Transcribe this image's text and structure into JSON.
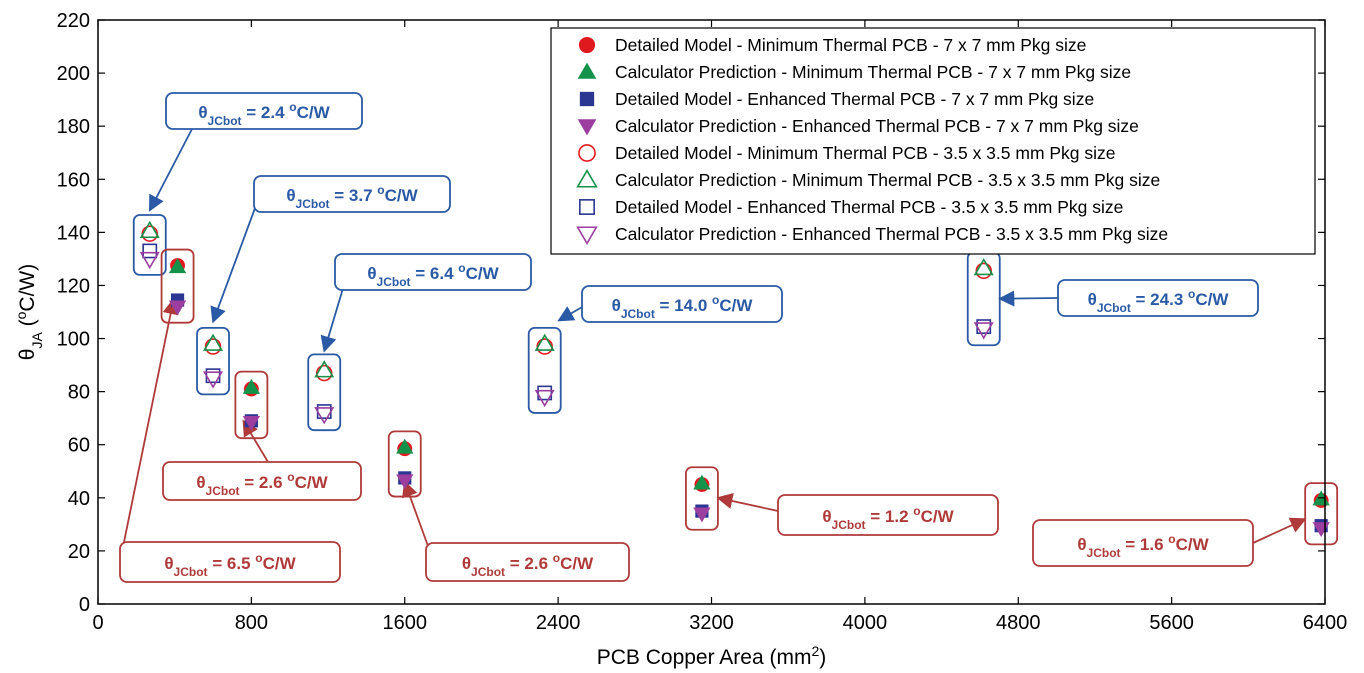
{
  "chart_data": {
    "type": "scatter",
    "xlabel": "PCB Copper Area (mm",
    "xlabel_sup": "2",
    "xlabel_end": ")",
    "ylabel_symbol": "θ",
    "ylabel_sub": "JA",
    "ylabel_open": " (",
    "ylabel_sup": "o",
    "ylabel_unit": "C/W)",
    "xlim": [
      0,
      6400
    ],
    "ylim": [
      0,
      220
    ],
    "x_ticks": [
      "0",
      "800",
      "1600",
      "2400",
      "3200",
      "4000",
      "4800",
      "5600",
      "6400"
    ],
    "y_ticks": [
      "0",
      "20",
      "40",
      "60",
      "80",
      "100",
      "120",
      "140",
      "160",
      "180",
      "200",
      "220"
    ],
    "grid": false,
    "legend_position": "top-right",
    "series": [
      {
        "name": "Detailed Model - Minimum Thermal PCB - 7 x 7 mm Pkg size",
        "marker": "filled-circle",
        "color": "#e0191e",
        "points": [
          [
            415,
            127.5
          ],
          [
            800,
            81
          ],
          [
            1600,
            58.5
          ],
          [
            3150,
            45
          ],
          [
            6380,
            39
          ]
        ]
      },
      {
        "name": "Calculator Prediction - Minimum Thermal PCB - 7 x 7 mm Pkg size",
        "marker": "filled-triangle-up",
        "color": "#14924a",
        "points": [
          [
            415,
            127
          ],
          [
            800,
            81.5
          ],
          [
            1600,
            59
          ],
          [
            3150,
            45.5
          ],
          [
            6380,
            39.5
          ]
        ]
      },
      {
        "name": "Detailed Model - Enhanced Thermal PCB - 7 x 7 mm Pkg size",
        "marker": "filled-square",
        "color": "#2b3592",
        "points": [
          [
            415,
            114.5
          ],
          [
            800,
            69
          ],
          [
            1600,
            47.5
          ],
          [
            3150,
            35
          ],
          [
            6380,
            29.5
          ]
        ]
      },
      {
        "name": "Calculator Prediction - Enhanced Thermal PCB - 7 x 7 mm Pkg size",
        "marker": "filled-triangle-down",
        "color": "#9b3ea0",
        "points": [
          [
            415,
            112
          ],
          [
            800,
            68.5
          ],
          [
            1600,
            46.5
          ],
          [
            3150,
            34
          ],
          [
            6380,
            28.5
          ]
        ]
      },
      {
        "name": "Detailed Model - Minimum Thermal PCB - 3.5 x 3.5 mm Pkg size",
        "marker": "open-circle",
        "color": "#e0191e",
        "points": [
          [
            270,
            139.5
          ],
          [
            600,
            97
          ],
          [
            1180,
            87
          ],
          [
            2330,
            97
          ],
          [
            4620,
            125.5
          ]
        ]
      },
      {
        "name": "Calculator Prediction - Minimum Thermal PCB - 3.5 x 3.5 mm Pkg size",
        "marker": "open-triangle-up",
        "color": "#14924a",
        "points": [
          [
            270,
            140.5
          ],
          [
            600,
            98
          ],
          [
            1180,
            88
          ],
          [
            2330,
            98
          ],
          [
            4620,
            126.5
          ]
        ]
      },
      {
        "name": "Detailed Model - Enhanced Thermal PCB - 3.5 x 3.5 mm Pkg size",
        "marker": "open-square",
        "color": "#2b3592",
        "points": [
          [
            270,
            133
          ],
          [
            600,
            86
          ],
          [
            1180,
            72.5
          ],
          [
            2330,
            79.5
          ],
          [
            4620,
            104.5
          ]
        ]
      },
      {
        "name": "Calculator Prediction - Enhanced Thermal PCB - 3.5 x 3.5 mm Pkg size",
        "marker": "open-triangle-down",
        "color": "#9b3ea0",
        "points": [
          [
            270,
            130
          ],
          [
            600,
            85
          ],
          [
            1180,
            71.5
          ],
          [
            2330,
            78
          ],
          [
            4620,
            103.5
          ]
        ]
      }
    ],
    "annotations": [
      {
        "symbol": "θ",
        "sub": "JCbot",
        "value": " = 2.4 ",
        "sup": "o",
        "unit": "C/W",
        "color": "#2a5aa6",
        "target_x": 270,
        "target_y": 140
      },
      {
        "symbol": "θ",
        "sub": "JCbot",
        "value": " = 3.7 ",
        "sup": "o",
        "unit": "C/W",
        "color": "#2a5aa6",
        "target_x": 600,
        "target_y": 98
      },
      {
        "symbol": "θ",
        "sub": "JCbot",
        "value": " = 6.4 ",
        "sup": "o",
        "unit": "C/W",
        "color": "#2a5aa6",
        "target_x": 1180,
        "target_y": 87
      },
      {
        "symbol": "θ",
        "sub": "JCbot",
        "value": " = 14.0 ",
        "sup": "o",
        "unit": "C/W",
        "color": "#2a5aa6",
        "target_x": 2330,
        "target_y": 97
      },
      {
        "symbol": "θ",
        "sub": "JCbot",
        "value": " = 24.3 ",
        "sup": "o",
        "unit": "C/W",
        "color": "#2a5aa6",
        "target_x": 4620,
        "target_y": 115
      },
      {
        "symbol": "θ",
        "sub": "JCbot",
        "value": " = 6.5 ",
        "sup": "o",
        "unit": "C/W",
        "color": "#b03a3a",
        "target_x": 415,
        "target_y": 120
      },
      {
        "symbol": "θ",
        "sub": "JCbot",
        "value": " = 2.6 ",
        "sup": "o",
        "unit": "C/W",
        "color": "#b03a3a",
        "target_x": 800,
        "target_y": 75
      },
      {
        "symbol": "θ",
        "sub": "JCbot",
        "value": " = 2.6 ",
        "sup": "o",
        "unit": "C/W",
        "color": "#b03a3a",
        "target_x": 1600,
        "target_y": 52
      },
      {
        "symbol": "θ",
        "sub": "JCbot",
        "value": " = 1.2 ",
        "sup": "o",
        "unit": "C/W",
        "color": "#b03a3a",
        "target_x": 3150,
        "target_y": 40
      },
      {
        "symbol": "θ",
        "sub": "JCbot",
        "value": " = 1.6 ",
        "sup": "o",
        "unit": "C/W",
        "color": "#b03a3a",
        "target_x": 6380,
        "target_y": 32
      }
    ]
  }
}
